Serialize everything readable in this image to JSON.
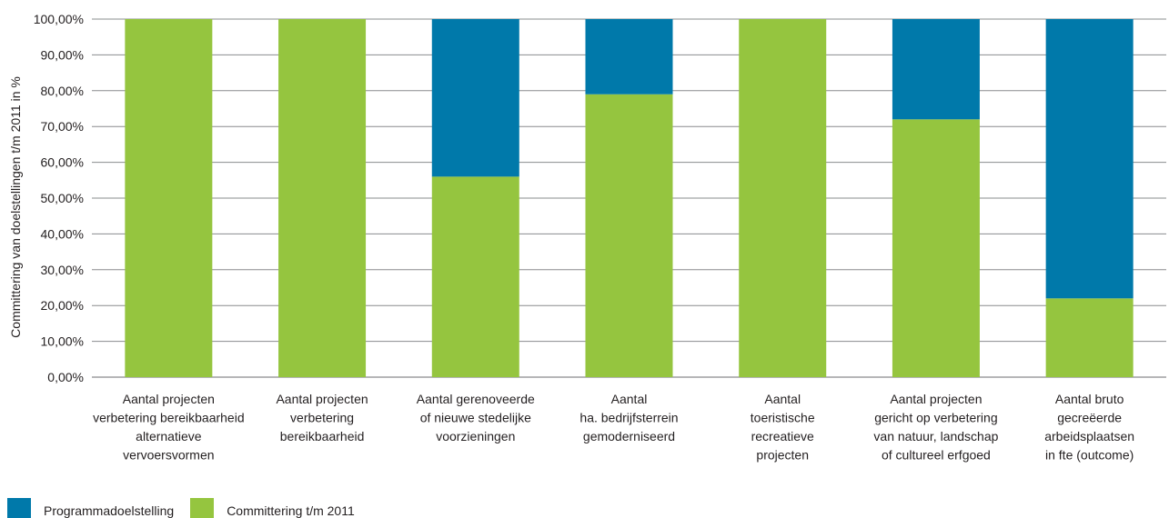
{
  "chart_data": {
    "type": "bar",
    "stacked": true,
    "ylabel": "Committering van doelstellingen t/m 2011 in %",
    "ylim": [
      0,
      100
    ],
    "yticks": [
      "0,00%",
      "10,00%",
      "20,00%",
      "30,00%",
      "40,00%",
      "50,00%",
      "60,00%",
      "70,00%",
      "80,00%",
      "90,00%",
      "100,00%"
    ],
    "grid": true,
    "legend_position": "bottom-left",
    "categories": [
      [
        "Aantal projecten",
        "verbetering bereikbaarheid",
        "alternatieve",
        "vervoersvormen"
      ],
      [
        "Aantal projecten",
        "verbetering",
        "bereikbaarheid"
      ],
      [
        "Aantal gerenoveerde",
        "of nieuwe stedelijke",
        "voorzieningen"
      ],
      [
        "Aantal",
        "ha. bedrijfsterrein",
        "gemoderniseerd"
      ],
      [
        "Aantal",
        "toeristische",
        "recreatieve",
        "projecten"
      ],
      [
        "Aantal projecten",
        "gericht op verbetering",
        "van natuur, landschap",
        "of cultureel erfgoed"
      ],
      [
        "Aantal bruto",
        "gecreëerde",
        "arbeidsplaatsen",
        "in fte (outcome)"
      ]
    ],
    "series": [
      {
        "name": "Committering t/m 2011",
        "color": "#95c53f",
        "values": [
          100,
          100,
          56,
          79,
          100,
          72,
          22
        ]
      },
      {
        "name": "Programmadoelstelling",
        "color": "#0079aa",
        "values": [
          0,
          0,
          44,
          21,
          0,
          28,
          78
        ]
      }
    ]
  },
  "legend": [
    {
      "label": "Programmadoelstelling",
      "color": "#0079aa"
    },
    {
      "label": "Committering t/m 2011",
      "color": "#95c53f"
    }
  ]
}
